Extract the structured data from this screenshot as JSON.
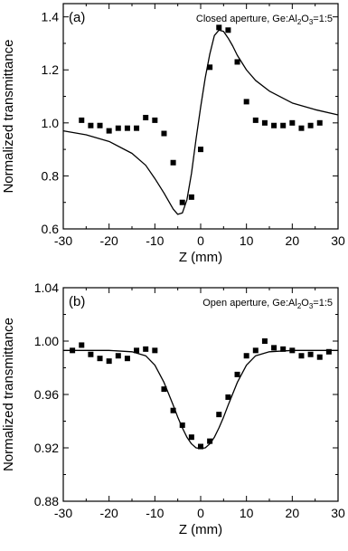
{
  "chart_data": [
    {
      "type": "scatter",
      "panel_label": "(a)",
      "annotation": {
        "prefix": "Closed aperture, Ge:Al",
        "sub1": "2",
        "mid": "O",
        "sub2": "3",
        "suffix": "=1:5"
      },
      "xlabel": "Z (mm)",
      "ylabel": "Normalized transmittance",
      "xlim": [
        -30,
        30
      ],
      "ylim": [
        0.6,
        1.45
      ],
      "xticks": [
        "-30",
        "-20",
        "-10",
        "0",
        "10",
        "20",
        "30"
      ],
      "yticks": [
        "0.6",
        "0.8",
        "1.0",
        "1.2",
        "1.4"
      ],
      "ytick_values": [
        0.6,
        0.8,
        1.0,
        1.2,
        1.4
      ],
      "series": [
        {
          "kind": "points",
          "x": [
            -26,
            -24,
            -22,
            -20,
            -18,
            -16,
            -14,
            -12,
            -10,
            -8,
            -6,
            -4,
            -2,
            0,
            2,
            4,
            6,
            8,
            10,
            12,
            14,
            16,
            18,
            20,
            22,
            24,
            26
          ],
          "y": [
            1.01,
            0.99,
            0.99,
            0.97,
            0.98,
            0.98,
            0.98,
            1.02,
            1.01,
            0.96,
            0.85,
            0.7,
            0.72,
            0.9,
            1.21,
            1.36,
            1.35,
            1.23,
            1.08,
            1.01,
            1.0,
            0.99,
            0.99,
            1.0,
            0.98,
            0.99,
            1.0
          ]
        },
        {
          "kind": "fit",
          "x": [
            -30,
            -25,
            -20,
            -15,
            -12,
            -10,
            -8,
            -6,
            -5,
            -4,
            -3,
            -2,
            -1,
            0,
            1,
            2,
            3,
            4,
            5,
            6,
            7,
            8,
            10,
            12,
            15,
            20,
            25,
            30
          ],
          "y": [
            0.97,
            0.955,
            0.93,
            0.885,
            0.84,
            0.79,
            0.735,
            0.675,
            0.655,
            0.66,
            0.71,
            0.81,
            0.94,
            1.06,
            1.17,
            1.26,
            1.33,
            1.35,
            1.345,
            1.32,
            1.29,
            1.255,
            1.2,
            1.16,
            1.12,
            1.075,
            1.05,
            1.03
          ]
        }
      ]
    },
    {
      "type": "scatter",
      "panel_label": "(b)",
      "annotation": {
        "prefix": "Open aperture, Ge:Al",
        "sub1": "2",
        "mid": "O",
        "sub2": "3",
        "suffix": "=1:5"
      },
      "xlabel": "Z (mm)",
      "ylabel": "Normalized transmittance",
      "xlim": [
        -30,
        30
      ],
      "ylim": [
        0.88,
        1.04
      ],
      "xticks": [
        "-30",
        "-20",
        "-10",
        "0",
        "10",
        "20",
        "30"
      ],
      "yticks": [
        "0.88",
        "0.92",
        "0.96",
        "1.00",
        "1.04"
      ],
      "ytick_values": [
        0.88,
        0.92,
        0.96,
        1.0,
        1.04
      ],
      "series": [
        {
          "kind": "points",
          "x": [
            -28,
            -26,
            -24,
            -22,
            -20,
            -18,
            -16,
            -14,
            -12,
            -10,
            -8,
            -6,
            -4,
            -2,
            0,
            2,
            4,
            6,
            8,
            10,
            12,
            14,
            16,
            18,
            20,
            22,
            24,
            26,
            28
          ],
          "y": [
            0.993,
            0.997,
            0.99,
            0.987,
            0.985,
            0.989,
            0.987,
            0.993,
            0.994,
            0.993,
            0.964,
            0.948,
            0.937,
            0.928,
            0.921,
            0.925,
            0.945,
            0.958,
            0.975,
            0.989,
            0.993,
            1.0,
            0.995,
            0.994,
            0.993,
            0.989,
            0.99,
            0.988,
            0.992
          ]
        },
        {
          "kind": "fit",
          "x": [
            -30,
            -20,
            -15,
            -12,
            -10,
            -8,
            -6,
            -5,
            -4,
            -3,
            -2,
            -1,
            0,
            1,
            2,
            3,
            4,
            5,
            6,
            8,
            10,
            12,
            15,
            20,
            30
          ],
          "y": [
            0.993,
            0.993,
            0.992,
            0.989,
            0.982,
            0.969,
            0.952,
            0.943,
            0.935,
            0.928,
            0.923,
            0.92,
            0.9195,
            0.92,
            0.923,
            0.928,
            0.935,
            0.943,
            0.952,
            0.969,
            0.982,
            0.989,
            0.992,
            0.993,
            0.993
          ]
        }
      ]
    }
  ]
}
